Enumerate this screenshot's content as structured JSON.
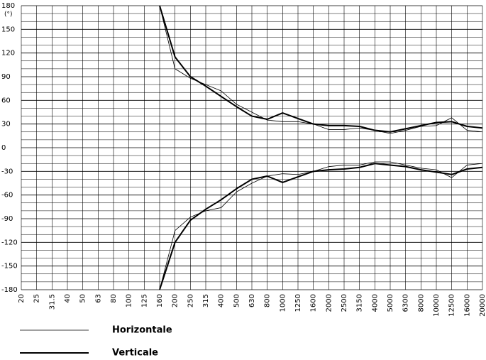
{
  "chart_data": {
    "type": "line",
    "y_unit": "(°)",
    "categories": [
      "20",
      "25",
      "31.5",
      "40",
      "50",
      "63",
      "80",
      "100",
      "125",
      "160",
      "200",
      "250",
      "315",
      "400",
      "500",
      "630",
      "800",
      "1000",
      "1250",
      "1600",
      "2000",
      "2500",
      "3150",
      "4000",
      "5000",
      "6300",
      "8000",
      "10000",
      "12500",
      "16000",
      "20000"
    ],
    "series": [
      {
        "name": "Horizontale",
        "color": "#000000",
        "width": 0.8,
        "values": [
          null,
          null,
          null,
          null,
          null,
          null,
          null,
          null,
          null,
          180,
          100,
          88,
          80,
          72,
          55,
          45,
          35,
          33,
          33,
          30,
          23,
          23,
          25,
          22,
          18,
          22,
          27,
          28,
          38,
          22,
          20
        ],
        "values_lower": [
          null,
          null,
          null,
          null,
          null,
          null,
          null,
          null,
          null,
          -180,
          -105,
          -88,
          -80,
          -76,
          -56,
          -45,
          -36,
          -33,
          -34,
          -30,
          -24,
          -22,
          -22,
          -18,
          -18,
          -22,
          -26,
          -28,
          -38,
          -22,
          -20
        ]
      },
      {
        "name": "Verticale",
        "color": "#000000",
        "width": 2,
        "values": [
          null,
          null,
          null,
          null,
          null,
          null,
          null,
          null,
          null,
          180,
          115,
          90,
          78,
          65,
          52,
          40,
          36,
          44,
          37,
          30,
          28,
          28,
          27,
          22,
          20,
          24,
          28,
          32,
          33,
          27,
          25
        ],
        "values_lower": [
          null,
          null,
          null,
          null,
          null,
          null,
          null,
          null,
          null,
          -180,
          -120,
          -92,
          -78,
          -66,
          -52,
          -40,
          -36,
          -44,
          -37,
          -30,
          -28,
          -27,
          -25,
          -20,
          -22,
          -24,
          -28,
          -31,
          -34,
          -27,
          -25
        ]
      }
    ],
    "ylim": [
      -180,
      180
    ],
    "yticks": [
      -180,
      -150,
      -120,
      -90,
      -60,
      -30,
      0,
      30,
      60,
      90,
      120,
      150,
      180
    ],
    "grid": true
  }
}
